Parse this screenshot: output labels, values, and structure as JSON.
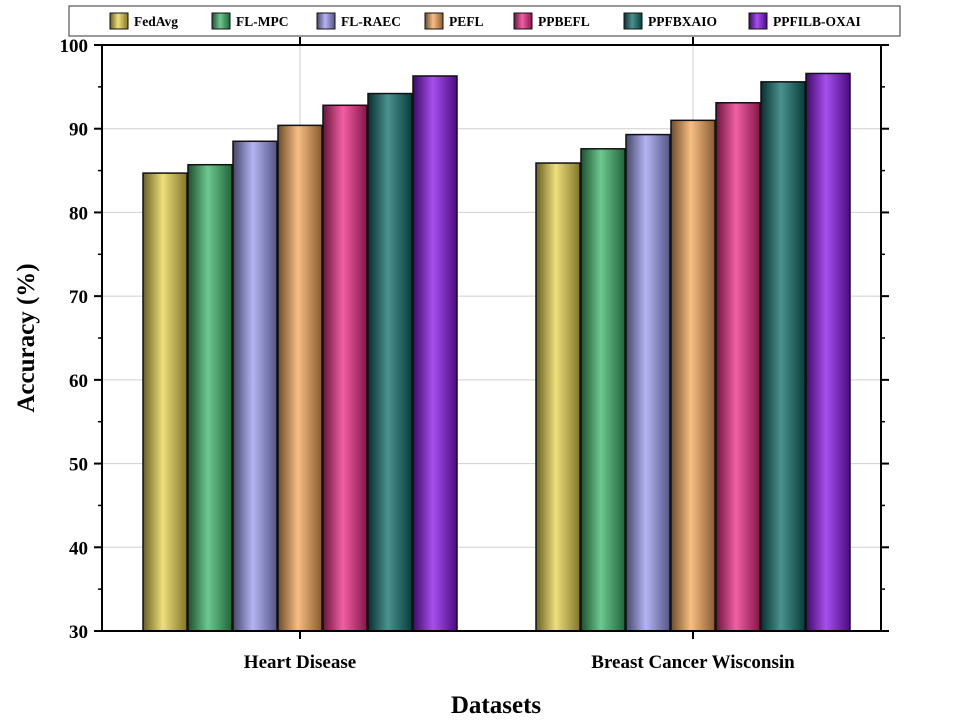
{
  "chart_data": {
    "type": "bar",
    "categories": [
      "Heart Disease",
      "Breast Cancer Wisconsin"
    ],
    "series": [
      {
        "name": "FedAvg",
        "color": "#e8d44d",
        "values": [
          84.7,
          85.9
        ]
      },
      {
        "name": "FL-MPC",
        "color": "#3db56a",
        "values": [
          85.7,
          87.6
        ]
      },
      {
        "name": "FL-RAEC",
        "color": "#9b9bf0",
        "values": [
          88.5,
          89.3
        ]
      },
      {
        "name": "PEFL",
        "color": "#f5a85a",
        "values": [
          90.4,
          91.0
        ]
      },
      {
        "name": "PPBEFL",
        "color": "#ee2a85",
        "values": [
          92.8,
          93.1
        ]
      },
      {
        "name": "PPFBXAIO",
        "color": "#0f6e6a",
        "values": [
          94.2,
          95.6
        ]
      },
      {
        "name": "PPFILB-OXAI",
        "color": "#8a14e8",
        "values": [
          96.3,
          96.6
        ]
      }
    ],
    "xlabel": "Datasets",
    "ylabel": "Accuracy (%)",
    "ylim": [
      30,
      100
    ],
    "yticks": [
      30,
      40,
      50,
      60,
      70,
      80,
      90,
      100
    ],
    "grid": true,
    "legend_position": "top"
  }
}
